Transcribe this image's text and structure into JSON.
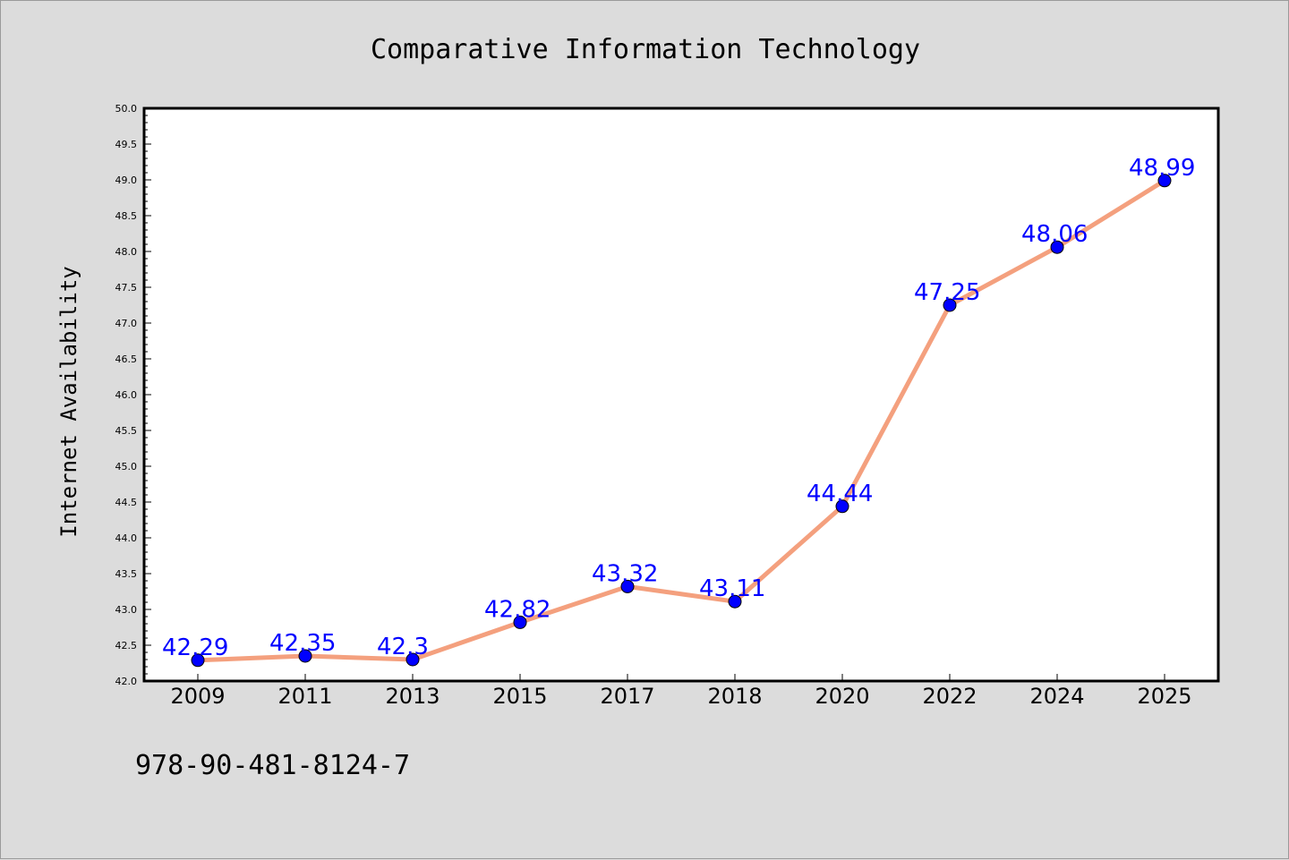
{
  "colors": {
    "background": "#dcdcdc",
    "plot_background": "#ffffff",
    "line": "#f4a07e",
    "marker": "#0000ff",
    "data_label": "#0000ff"
  },
  "footer": {
    "isbn": "978-90-481-8124-7"
  },
  "chart_data": {
    "type": "line",
    "title": "Comparative Information Technology",
    "xlabel": "",
    "ylabel": "Internet Availability",
    "categories": [
      "2009",
      "2011",
      "2013",
      "2015",
      "2017",
      "2018",
      "2020",
      "2022",
      "2024",
      "2025"
    ],
    "values": [
      42.29,
      42.35,
      42.3,
      42.82,
      43.32,
      43.11,
      44.44,
      47.25,
      48.06,
      48.99
    ],
    "data_labels": [
      "42.29",
      "42.35",
      "42.3",
      "42.82",
      "43.32",
      "43.11",
      "44.44",
      "47.25",
      "48.06",
      "48.99"
    ],
    "ylim": [
      42.0,
      50.0
    ],
    "yticks": [
      "42.0",
      "42.5",
      "43.0",
      "43.5",
      "44.0",
      "44.5",
      "45.0",
      "45.5",
      "46.0",
      "46.5",
      "47.0",
      "47.5",
      "48.0",
      "48.5",
      "49.0",
      "49.5",
      "50.0"
    ],
    "grid": false,
    "legend": "none"
  }
}
